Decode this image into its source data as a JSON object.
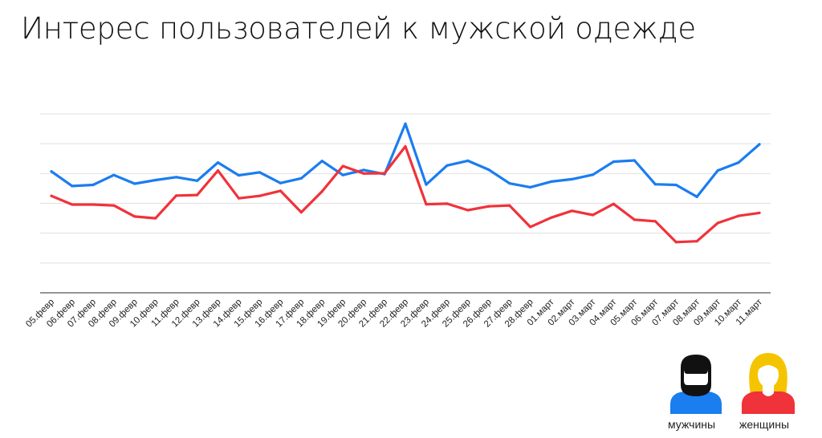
{
  "title": "Интерес пользователей к мужской одежде",
  "legend": {
    "men_label": "мужчины",
    "women_label": "женщины",
    "men_icon": "man-icon",
    "women_icon": "woman-icon"
  },
  "colors": {
    "men": "#1a7df0",
    "women": "#f0323a",
    "grid": "#e0e0e0",
    "axis": "#555555"
  },
  "chart_data": {
    "type": "line",
    "title": "Интерес пользователей к мужской одежде",
    "categories": [
      "05.февр",
      "06.февр",
      "07.февр",
      "08.февр",
      "09.февр",
      "10.февр",
      "11.февр",
      "12.февр",
      "13.февр",
      "14.февр",
      "15.февр",
      "16.февр",
      "17.февр",
      "18.февр",
      "19.февр",
      "20.февр",
      "21.февр",
      "22.февр",
      "23.февр",
      "24.февр",
      "25.февр",
      "26.февр",
      "27.февр",
      "28.февр",
      "01.март",
      "02.март",
      "03.март",
      "04.март",
      "05.март",
      "06.март",
      "07.март",
      "08.март",
      "09.март",
      "10.март",
      "11.март"
    ],
    "ylim": [
      0,
      6
    ],
    "grid": true,
    "y_ticks_labeled": false,
    "legend_placement": "bottom-right",
    "series": [
      {
        "name": "мужчины",
        "color": "#1a7df0",
        "values": [
          4.07,
          3.58,
          3.62,
          3.95,
          3.66,
          3.78,
          3.88,
          3.76,
          4.37,
          3.94,
          4.04,
          3.68,
          3.84,
          4.42,
          3.95,
          4.12,
          3.98,
          5.67,
          3.63,
          4.27,
          4.43,
          4.13,
          3.67,
          3.54,
          3.73,
          3.81,
          3.96,
          4.4,
          4.44,
          3.64,
          3.62,
          3.22,
          4.1,
          4.37,
          4.98
        ]
      },
      {
        "name": "женщины",
        "color": "#f0323a",
        "values": [
          3.25,
          2.96,
          2.96,
          2.93,
          2.56,
          2.5,
          3.26,
          3.28,
          4.1,
          3.17,
          3.25,
          3.42,
          2.7,
          3.4,
          4.25,
          4.0,
          4.01,
          4.91,
          2.97,
          2.99,
          2.77,
          2.9,
          2.93,
          2.21,
          2.52,
          2.75,
          2.61,
          2.98,
          2.45,
          2.4,
          1.7,
          1.73,
          2.34,
          2.58,
          2.68
        ]
      }
    ]
  }
}
